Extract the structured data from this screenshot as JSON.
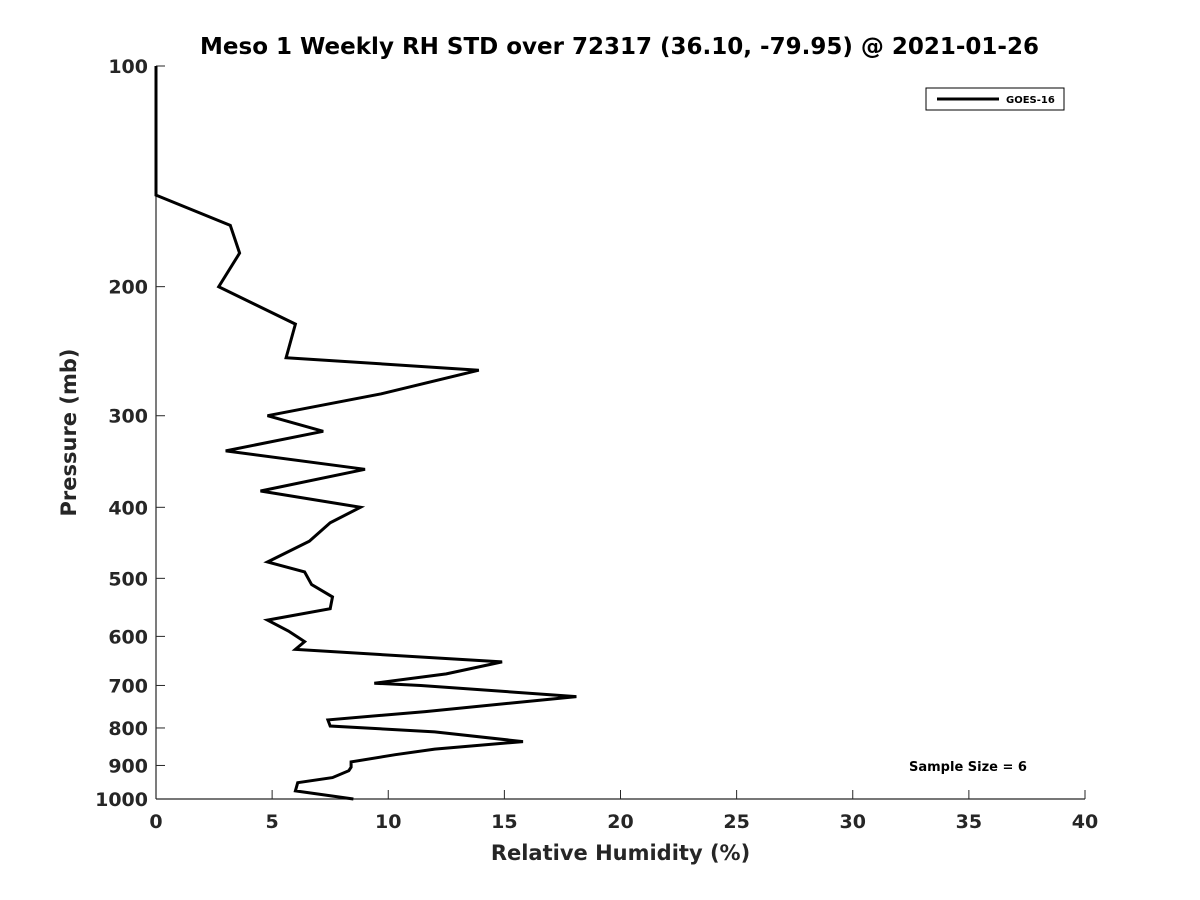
{
  "chart_data": {
    "type": "line",
    "title": "Meso 1 Weekly RH STD over 72317 (36.10, -79.95) @ 2021-01-26",
    "xlabel": "Relative Humidity (%)",
    "ylabel": "Pressure (mb)",
    "xlim": [
      0,
      40
    ],
    "ylim": [
      100,
      1000
    ],
    "y_scale": "log",
    "y_reversed": true,
    "grid": false,
    "legend_position": "top-right",
    "x_ticks": [
      "0",
      "5",
      "10",
      "15",
      "20",
      "25",
      "30",
      "35",
      "40"
    ],
    "y_ticks": [
      "100",
      "200",
      "300",
      "400",
      "500",
      "600",
      "700",
      "800",
      "900",
      "1000"
    ],
    "annotation": "Sample Size = 6",
    "series": [
      {
        "name": "GOES-16",
        "color": "#000000",
        "x": [
          0.0,
          0.0,
          0.0,
          0.0,
          3.2,
          3.6,
          2.7,
          6.0,
          5.6,
          13.9,
          9.7,
          4.8,
          7.2,
          3.0,
          9.0,
          4.5,
          8.8,
          7.5,
          6.6,
          4.8,
          6.4,
          6.7,
          7.6,
          7.5,
          4.8,
          5.7,
          6.4,
          6.0,
          14.9,
          12.5,
          9.4,
          11.4,
          18.1,
          11.6,
          7.4,
          7.5,
          12.0,
          15.8,
          12.0,
          10.3,
          8.4,
          8.4,
          8.3,
          7.6,
          6.1,
          6.0,
          8.5
        ],
        "y": [
          100,
          110,
          125,
          150,
          165,
          180,
          200,
          225,
          250,
          260,
          280,
          300,
          315,
          335,
          355,
          380,
          400,
          420,
          445,
          475,
          490,
          510,
          530,
          550,
          570,
          590,
          610,
          625,
          650,
          675,
          695,
          700,
          725,
          760,
          780,
          795,
          810,
          835,
          855,
          870,
          890,
          905,
          915,
          935,
          950,
          975,
          1000
        ]
      }
    ]
  }
}
